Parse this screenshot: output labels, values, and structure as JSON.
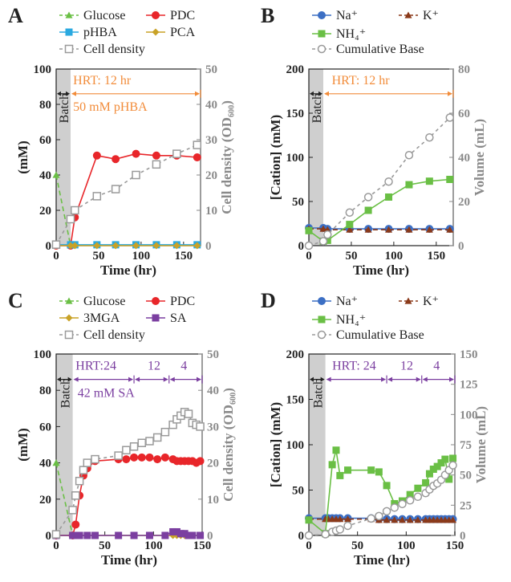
{
  "chart_data": [
    {
      "id": "A",
      "type": "line",
      "panel_label": "A",
      "xlabel": "Time (hr)",
      "ylabel": "(mM)",
      "y2label": "Cell density (OD₆₀₀)",
      "xlim": [
        0,
        170
      ],
      "ylim": [
        0,
        100
      ],
      "y2lim": [
        0,
        50
      ],
      "xticks": [
        0,
        50,
        100,
        150
      ],
      "yticks": [
        0,
        20,
        40,
        60,
        80,
        100
      ],
      "y2ticks": [
        0,
        10,
        20,
        30,
        40,
        50
      ],
      "batch_label": "Batch",
      "batch_range": [
        0,
        17
      ],
      "annotations": [
        {
          "text": "HRT: 12 hr",
          "x": 20,
          "y": 94,
          "color": "#f28c3a"
        },
        {
          "text": "50 mM pHBA",
          "x": 20,
          "y": 79,
          "color": "#f28c3a"
        }
      ],
      "arrows": [
        {
          "x1": 17,
          "x2": 170,
          "y": 86,
          "color": "#f28c3a"
        }
      ],
      "legend": [
        {
          "name": "Glucose",
          "series": "glucose"
        },
        {
          "name": "PDC",
          "series": "pdc"
        },
        {
          "name": "pHBA",
          "series": "phba"
        },
        {
          "name": "PCA",
          "series": "pca"
        },
        {
          "name": "Cell density",
          "series": "od"
        }
      ],
      "series": [
        {
          "key": "glucose",
          "name": "Glucose",
          "color": "#6abf45",
          "marker": "triangle",
          "dash": "6,4",
          "axis": "left",
          "x": [
            0,
            17
          ],
          "y": [
            40,
            0
          ]
        },
        {
          "key": "pdc",
          "name": "PDC",
          "color": "#e8262a",
          "marker": "circle",
          "dash": "",
          "axis": "left",
          "x": [
            0,
            17,
            22,
            48,
            70,
            94,
            118,
            142,
            166
          ],
          "y": [
            0,
            0,
            16,
            51,
            49,
            52,
            51,
            51,
            50
          ]
        },
        {
          "key": "phba",
          "name": "pHBA",
          "color": "#2aa9e0",
          "marker": "square",
          "dash": "",
          "axis": "left",
          "x": [
            0,
            17,
            22,
            48,
            70,
            94,
            118,
            142,
            166
          ],
          "y": [
            0.5,
            0.5,
            0.5,
            0.5,
            0.5,
            0.5,
            0.5,
            0.5,
            0.5
          ]
        },
        {
          "key": "pca",
          "name": "PCA",
          "color": "#c9a227",
          "marker": "diamond",
          "dash": "",
          "axis": "left",
          "x": [
            0,
            17,
            22,
            48,
            70,
            94,
            118,
            142,
            166
          ],
          "y": [
            0,
            0,
            0,
            0,
            0,
            0,
            0,
            0,
            0
          ]
        },
        {
          "key": "od",
          "name": "Cell density",
          "color": "#9a9a9a",
          "marker": "open-square",
          "dash": "4,4",
          "axis": "right",
          "x": [
            0,
            17,
            22,
            48,
            70,
            94,
            118,
            142,
            166
          ],
          "y": [
            0.3,
            7.5,
            10,
            14,
            16,
            20,
            23,
            26,
            28.5
          ]
        }
      ]
    },
    {
      "id": "B",
      "type": "line",
      "panel_label": "B",
      "xlabel": "Time (hr)",
      "ylabel": "[Cation] (mM)",
      "y2label": "Volume (mL)",
      "xlim": [
        0,
        170
      ],
      "ylim": [
        0,
        200
      ],
      "y2lim": [
        0,
        80
      ],
      "xticks": [
        0,
        50,
        100,
        150
      ],
      "yticks": [
        0,
        50,
        100,
        150,
        200
      ],
      "y2ticks": [
        0,
        20,
        40,
        60,
        80
      ],
      "batch_label": "Batch",
      "batch_range": [
        0,
        17
      ],
      "annotations": [
        {
          "text": "HRT: 12 hr",
          "x": 27,
          "y": 188,
          "color": "#f28c3a"
        }
      ],
      "arrows": [
        {
          "x1": 17,
          "x2": 170,
          "y": 172,
          "color": "#f28c3a"
        }
      ],
      "legend": [
        {
          "name": "Na⁺",
          "series": "na"
        },
        {
          "name": "K⁺",
          "series": "k"
        },
        {
          "name": "NH₄⁺",
          "series": "nh4"
        },
        {
          "name": "Cumulative Base",
          "series": "base"
        }
      ],
      "series": [
        {
          "key": "na",
          "name": "Na⁺",
          "color": "#3c6fc4",
          "marker": "circle",
          "dash": "",
          "axis": "left",
          "x": [
            0,
            17,
            22,
            48,
            70,
            94,
            118,
            142,
            166
          ],
          "y": [
            20,
            20,
            19,
            19,
            19,
            19,
            19,
            19,
            19
          ]
        },
        {
          "key": "k",
          "name": "K⁺",
          "color": "#8b3a1a",
          "marker": "triangle",
          "dash": "6,4",
          "axis": "left",
          "x": [
            0,
            17,
            22,
            48,
            70,
            94,
            118,
            142,
            166
          ],
          "y": [
            19,
            19,
            18,
            18,
            18,
            18,
            18,
            18,
            18
          ]
        },
        {
          "key": "nh4",
          "name": "NH₄⁺",
          "color": "#6abf45",
          "marker": "square",
          "dash": "",
          "axis": "left",
          "x": [
            0,
            17,
            22,
            48,
            70,
            94,
            118,
            142,
            166
          ],
          "y": [
            17,
            5,
            6,
            24,
            40,
            55,
            69,
            73,
            75
          ]
        },
        {
          "key": "base",
          "name": "Cumulative Base",
          "color": "#9a9a9a",
          "marker": "open-circle",
          "dash": "4,4",
          "axis": "right",
          "x": [
            0,
            17,
            22,
            48,
            70,
            94,
            118,
            142,
            166
          ],
          "y": [
            0,
            2,
            5,
            15,
            22,
            29,
            41,
            49,
            58
          ]
        }
      ]
    },
    {
      "id": "C",
      "type": "line",
      "panel_label": "C",
      "xlabel": "Time (hr)",
      "ylabel": "(mM)",
      "y2label": "Cell density (OD₆₀₀)",
      "xlim": [
        0,
        150
      ],
      "ylim": [
        0,
        100
      ],
      "y2lim": [
        0,
        50
      ],
      "xticks": [
        0,
        50,
        100,
        150
      ],
      "yticks": [
        0,
        20,
        40,
        60,
        80,
        100
      ],
      "y2ticks": [
        0,
        10,
        20,
        30,
        40,
        50
      ],
      "batch_label": "Batch",
      "batch_range": [
        0,
        17
      ],
      "annotations": [
        {
          "text": "HRT:24",
          "x": 20,
          "y": 94,
          "color": "#7b3fa0"
        },
        {
          "text": "12",
          "x": 94,
          "y": 94,
          "color": "#7b3fa0"
        },
        {
          "text": "4",
          "x": 128,
          "y": 94,
          "color": "#7b3fa0"
        },
        {
          "text": "42 mM SA",
          "x": 22,
          "y": 79,
          "color": "#7b3fa0"
        }
      ],
      "arrows": [
        {
          "x1": 17,
          "x2": 80,
          "y": 86,
          "color": "#7b3fa0"
        },
        {
          "x1": 80,
          "x2": 116,
          "y": 86,
          "color": "#7b3fa0"
        },
        {
          "x1": 116,
          "x2": 150,
          "y": 86,
          "color": "#7b3fa0"
        }
      ],
      "legend": [
        {
          "name": "Glucose",
          "series": "glucose"
        },
        {
          "name": "PDC",
          "series": "pdc"
        },
        {
          "name": "3MGA",
          "series": "mga"
        },
        {
          "name": "SA",
          "series": "sa"
        },
        {
          "name": "Cell density",
          "series": "od"
        }
      ],
      "series": [
        {
          "key": "glucose",
          "name": "Glucose",
          "color": "#6abf45",
          "marker": "triangle",
          "dash": "6,4",
          "axis": "left",
          "x": [
            0,
            17
          ],
          "y": [
            40,
            0
          ]
        },
        {
          "key": "pdc",
          "name": "PDC",
          "color": "#e8262a",
          "marker": "circle",
          "dash": "",
          "axis": "left",
          "x": [
            0,
            17,
            20,
            24,
            28,
            32,
            40,
            64,
            72,
            80,
            88,
            96,
            104,
            112,
            120,
            124,
            128,
            132,
            136,
            140,
            144,
            148
          ],
          "y": [
            0,
            0,
            6,
            22,
            33,
            37,
            41,
            42,
            42,
            43,
            43,
            43,
            42,
            43,
            42,
            41,
            41,
            41,
            41,
            41,
            40,
            41
          ]
        },
        {
          "key": "mga",
          "name": "3MGA",
          "color": "#c9a227",
          "marker": "diamond",
          "dash": "",
          "axis": "left",
          "x": [
            0,
            17,
            24,
            32,
            40,
            64,
            80,
            96,
            112,
            120,
            124,
            128,
            132,
            136,
            140,
            148
          ],
          "y": [
            0,
            0,
            0,
            0,
            0,
            0,
            0,
            0,
            0,
            0,
            0,
            0,
            0,
            0,
            0,
            0
          ]
        },
        {
          "key": "sa",
          "name": "SA",
          "color": "#7b3fa0",
          "marker": "square",
          "dash": "",
          "axis": "left",
          "x": [
            0,
            17,
            24,
            32,
            40,
            64,
            80,
            96,
            112,
            120,
            124,
            128,
            132,
            136,
            140,
            148
          ],
          "y": [
            0,
            0,
            0,
            0,
            0,
            0,
            0,
            0,
            0,
            2,
            2,
            1,
            1,
            0,
            0,
            0
          ]
        },
        {
          "key": "od",
          "name": "Cell density",
          "color": "#9a9a9a",
          "marker": "open-square",
          "dash": "4,4",
          "axis": "right",
          "x": [
            0,
            17,
            20,
            24,
            28,
            32,
            40,
            64,
            72,
            80,
            88,
            96,
            104,
            112,
            120,
            124,
            128,
            132,
            136,
            140,
            144,
            148
          ],
          "y": [
            0.3,
            7,
            11,
            15,
            18,
            20,
            21,
            22,
            23.5,
            24.5,
            25.5,
            26,
            27,
            28.5,
            30.5,
            32,
            33,
            34,
            33.5,
            31,
            30.5,
            30
          ]
        }
      ]
    },
    {
      "id": "D",
      "type": "line",
      "panel_label": "D",
      "xlabel": "Time (hr)",
      "ylabel": "[Cation] (mM)",
      "y2label": "Volume (mL)",
      "xlim": [
        0,
        150
      ],
      "ylim": [
        0,
        200
      ],
      "y2lim": [
        0,
        150
      ],
      "xticks": [
        0,
        50,
        100,
        150
      ],
      "yticks": [
        0,
        50,
        100,
        150,
        200
      ],
      "y2ticks": [
        0,
        25,
        50,
        75,
        100,
        125,
        150
      ],
      "batch_label": "Batch",
      "batch_range": [
        0,
        17
      ],
      "annotations": [
        {
          "text": "HRT: 24",
          "x": 24,
          "y": 188,
          "color": "#7b3fa0"
        },
        {
          "text": "12",
          "x": 94,
          "y": 188,
          "color": "#7b3fa0"
        },
        {
          "text": "4",
          "x": 128,
          "y": 188,
          "color": "#7b3fa0"
        }
      ],
      "arrows": [
        {
          "x1": 17,
          "x2": 80,
          "y": 172,
          "color": "#7b3fa0"
        },
        {
          "x1": 80,
          "x2": 116,
          "y": 172,
          "color": "#7b3fa0"
        },
        {
          "x1": 116,
          "x2": 150,
          "y": 172,
          "color": "#7b3fa0"
        }
      ],
      "legend": [
        {
          "name": "Na⁺",
          "series": "na"
        },
        {
          "name": "K⁺",
          "series": "k"
        },
        {
          "name": "NH₄⁺",
          "series": "nh4"
        },
        {
          "name": "Cumulative Base",
          "series": "base"
        }
      ],
      "series": [
        {
          "key": "na",
          "name": "Na⁺",
          "color": "#3c6fc4",
          "marker": "circle",
          "dash": "",
          "axis": "left",
          "x": [
            0,
            17,
            20,
            24,
            28,
            32,
            40,
            64,
            72,
            80,
            88,
            96,
            104,
            112,
            120,
            124,
            128,
            132,
            136,
            140,
            144,
            148
          ],
          "y": [
            19,
            19,
            19,
            19,
            19,
            19,
            19,
            19,
            18,
            18,
            18,
            18,
            18,
            18,
            18,
            18,
            18,
            18,
            18,
            18,
            18,
            18
          ]
        },
        {
          "key": "k",
          "name": "K⁺",
          "color": "#8b3a1a",
          "marker": "triangle",
          "dash": "6,4",
          "axis": "left",
          "x": [
            0,
            17,
            20,
            24,
            28,
            32,
            40,
            64,
            72,
            80,
            88,
            96,
            104,
            112,
            120,
            124,
            128,
            132,
            136,
            140,
            144,
            148
          ],
          "y": [
            18,
            18,
            18,
            18,
            18,
            18,
            18,
            18,
            17,
            17,
            17,
            17,
            17,
            17,
            17,
            17,
            17,
            17,
            17,
            17,
            17,
            17
          ]
        },
        {
          "key": "nh4",
          "name": "NH₄⁺",
          "color": "#6abf45",
          "marker": "square",
          "dash": "",
          "axis": "left",
          "x": [
            0,
            17,
            24,
            28,
            32,
            40,
            64,
            72,
            80,
            88,
            96,
            104,
            112,
            120,
            124,
            128,
            132,
            136,
            140,
            144,
            148
          ],
          "y": [
            17,
            2,
            78,
            94,
            66,
            72,
            72,
            70,
            55,
            35,
            38,
            45,
            52,
            58,
            68,
            73,
            76,
            80,
            84,
            62,
            85
          ]
        },
        {
          "key": "base",
          "name": "Cumulative Base",
          "color": "#9a9a9a",
          "marker": "open-circle",
          "dash": "4,4",
          "axis": "right",
          "x": [
            0,
            17,
            24,
            28,
            32,
            40,
            64,
            72,
            80,
            88,
            96,
            104,
            112,
            120,
            124,
            128,
            132,
            136,
            140,
            144,
            148
          ],
          "y": [
            0,
            1,
            3,
            4,
            5,
            8,
            14,
            16,
            20,
            23,
            26,
            29,
            32,
            35,
            38,
            41,
            43,
            46,
            50,
            54,
            58
          ]
        }
      ]
    }
  ]
}
